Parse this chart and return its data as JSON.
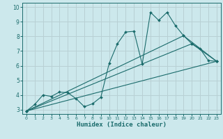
{
  "xlabel": "Humidex (Indice chaleur)",
  "bg_color": "#cce8ec",
  "grid_color": "#b8d0d4",
  "line_color": "#1a6b6b",
  "xlim": [
    -0.5,
    23.5
  ],
  "ylim": [
    2.7,
    10.3
  ],
  "yticks": [
    3,
    4,
    5,
    6,
    7,
    8,
    9,
    10
  ],
  "xticks": [
    0,
    1,
    2,
    3,
    4,
    5,
    6,
    7,
    8,
    9,
    10,
    11,
    12,
    13,
    14,
    15,
    16,
    17,
    18,
    19,
    20,
    21,
    22,
    23
  ],
  "series1_x": [
    0,
    1,
    2,
    3,
    4,
    5,
    6,
    7,
    8,
    9,
    10,
    11,
    12,
    13,
    14,
    15,
    16,
    17,
    18,
    19,
    20,
    21,
    22,
    23
  ],
  "series1_y": [
    2.9,
    3.35,
    4.0,
    3.9,
    4.2,
    4.15,
    3.75,
    3.2,
    3.4,
    3.85,
    6.15,
    7.5,
    8.3,
    8.35,
    6.1,
    9.65,
    9.1,
    9.65,
    8.75,
    8.05,
    7.5,
    7.15,
    6.35,
    6.3
  ],
  "series2_x": [
    0,
    23
  ],
  "series2_y": [
    2.9,
    6.3
  ],
  "series3_x": [
    0,
    20,
    23
  ],
  "series3_y": [
    2.9,
    7.5,
    6.3
  ],
  "series4_x": [
    0,
    19,
    23
  ],
  "series4_y": [
    2.9,
    8.05,
    6.3
  ]
}
